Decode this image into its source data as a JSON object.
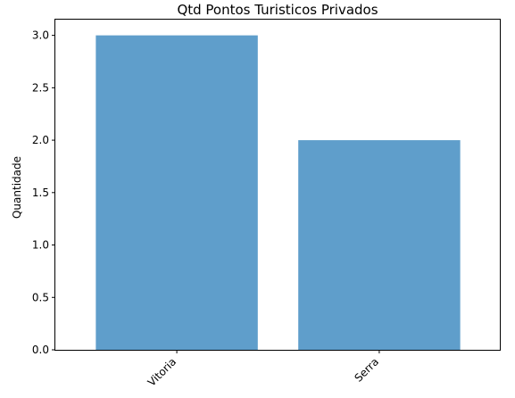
{
  "chart_data": {
    "type": "bar",
    "title": "Qtd Pontos Turisticos Privados",
    "xlabel": "",
    "ylabel": "Quantidade",
    "categories": [
      "Vitoria",
      "Serra"
    ],
    "values": [
      3,
      2
    ],
    "ylim": [
      0,
      3.15
    ],
    "yticks": [
      "0.0",
      "0.5",
      "1.0",
      "1.5",
      "2.0",
      "2.5",
      "3.0"
    ],
    "xtick_rotation": 45,
    "grid": false,
    "bar_color": "#5f9ecb",
    "text_color": "#000000",
    "axis_color": "#000000"
  }
}
